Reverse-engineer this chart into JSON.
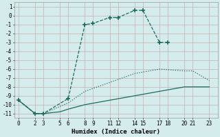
{
  "xlabel": "Humidex (Indice chaleur)",
  "background_color": "#d4ecec",
  "grid_color": "#c8b8b8",
  "line_color": "#1a6b5a",
  "xlim": [
    -0.5,
    24
  ],
  "ylim": [
    -11.5,
    1.5
  ],
  "xticks": [
    0,
    2,
    3,
    5,
    6,
    8,
    9,
    11,
    12,
    14,
    15,
    17,
    18,
    20,
    21,
    23
  ],
  "yticks": [
    1,
    0,
    -1,
    -2,
    -3,
    -4,
    -5,
    -6,
    -7,
    -8,
    -9,
    -10,
    -11
  ],
  "line1_x": [
    0,
    2,
    3,
    6,
    8,
    9,
    11,
    12,
    14,
    15,
    17,
    18
  ],
  "line1_y": [
    -9.5,
    -11.0,
    -11.0,
    -9.3,
    -1.0,
    -0.85,
    -0.2,
    -0.2,
    0.6,
    0.6,
    -3.0,
    -3.0
  ],
  "line2_x": [
    0,
    2,
    3,
    5,
    6,
    8,
    11,
    14,
    17,
    20,
    21,
    23
  ],
  "line2_y": [
    -9.5,
    -11.0,
    -11.0,
    -10.2,
    -9.8,
    -8.5,
    -7.5,
    -6.5,
    -6.0,
    -6.2,
    -6.2,
    -7.3
  ],
  "line3_x": [
    0,
    2,
    3,
    5,
    6,
    8,
    11,
    14,
    17,
    20,
    21,
    23
  ],
  "line3_y": [
    -9.5,
    -11.0,
    -11.0,
    -10.8,
    -10.5,
    -10.0,
    -9.5,
    -9.0,
    -8.5,
    -8.0,
    -8.0,
    -8.0
  ]
}
